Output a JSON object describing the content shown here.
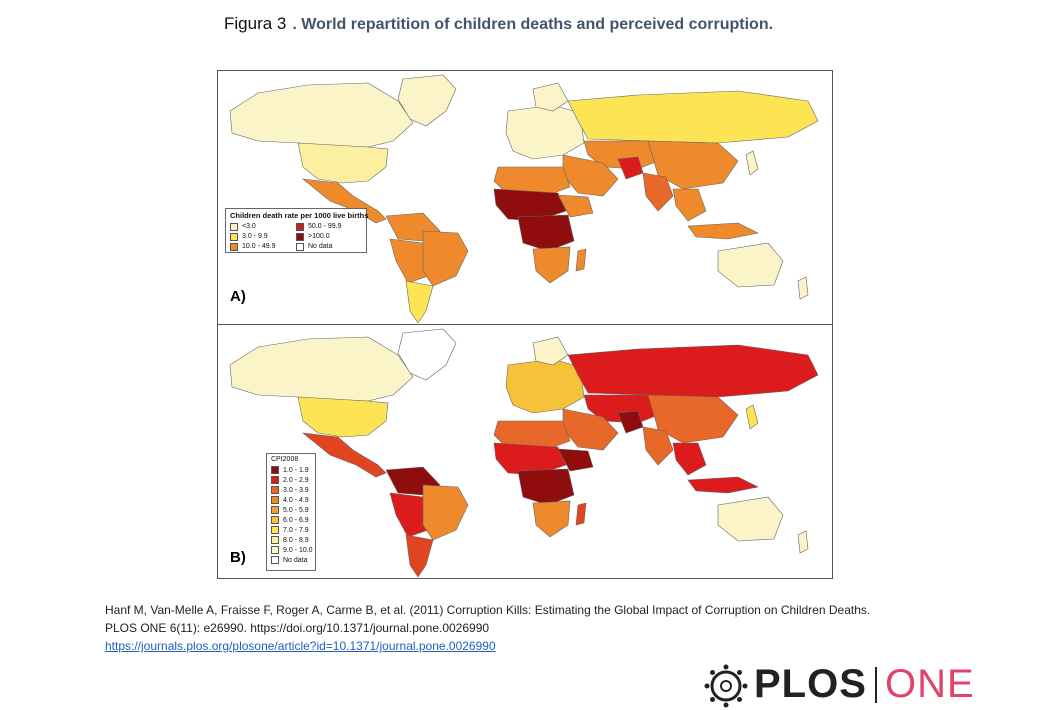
{
  "title": {
    "figure_label": "Figura 3",
    "text": ". World repartition of children deaths and perceived corruption."
  },
  "colors": {
    "c_lightest": "#fbf4c8",
    "c_light": "#faf0a0",
    "c_yellow": "#fde455",
    "c_gold": "#f6c23a",
    "c_orange_light": "#f4a030",
    "c_orange": "#ee8a2c",
    "c_orange_dark": "#e8682a",
    "c_red_orange": "#e04420",
    "c_red": "#dc1c1c",
    "c_dark_red": "#900d0d",
    "c_nodata": "#ffffff",
    "ocean": "#ffffff",
    "border": "#555555",
    "plos_pink": "#e0446b"
  },
  "panel_a": {
    "tag": "A)",
    "legend_title": "Children death rate per 1000 live births",
    "legend_items": [
      {
        "label": "<3.0",
        "color": "#fbf4c8"
      },
      {
        "label": "50.0 - 99.9",
        "color": "#c0261e"
      },
      {
        "label": "3.0 - 9.9",
        "color": "#fde455"
      },
      {
        "label": ">100.0",
        "color": "#8b0d0d"
      },
      {
        "label": "10.0 - 49.9",
        "color": "#ee8a2c"
      },
      {
        "label": "No data",
        "color": "#ffffff"
      }
    ]
  },
  "panel_b": {
    "tag": "B)",
    "legend_title": "CPI2008",
    "legend_items": [
      {
        "label": "1.0 - 1.9",
        "color": "#8b0d0d"
      },
      {
        "label": "2.0 - 2.9",
        "color": "#dc1c1c"
      },
      {
        "label": "3.0 - 3.9",
        "color": "#e8682a"
      },
      {
        "label": "4.0 - 4.9",
        "color": "#ee8a2c"
      },
      {
        "label": "5.0 - 5.9",
        "color": "#f4a030"
      },
      {
        "label": "6.0 - 6.9",
        "color": "#f6c23a"
      },
      {
        "label": "7.0 - 7.9",
        "color": "#fde455"
      },
      {
        "label": "8.0 - 8.9",
        "color": "#faf0a0"
      },
      {
        "label": "9.0 - 10.0",
        "color": "#fbf4c8"
      },
      {
        "label": "No data",
        "color": "#ffffff"
      }
    ]
  },
  "citation": {
    "line1": "Hanf M, Van-Melle A, Fraisse F, Roger A, Carme B, et al. (2011) Corruption Kills: Estimating the Global Impact of Corruption on Children Deaths.",
    "line2": "PLOS ONE 6(11): e26990. https://doi.org/10.1371/journal.pone.0026990",
    "link": "https://journals.plos.org/plosone/article?id=10.1371/journal.pone.0026990"
  },
  "logo": {
    "part1": "PLOS",
    "part2": "ONE"
  }
}
